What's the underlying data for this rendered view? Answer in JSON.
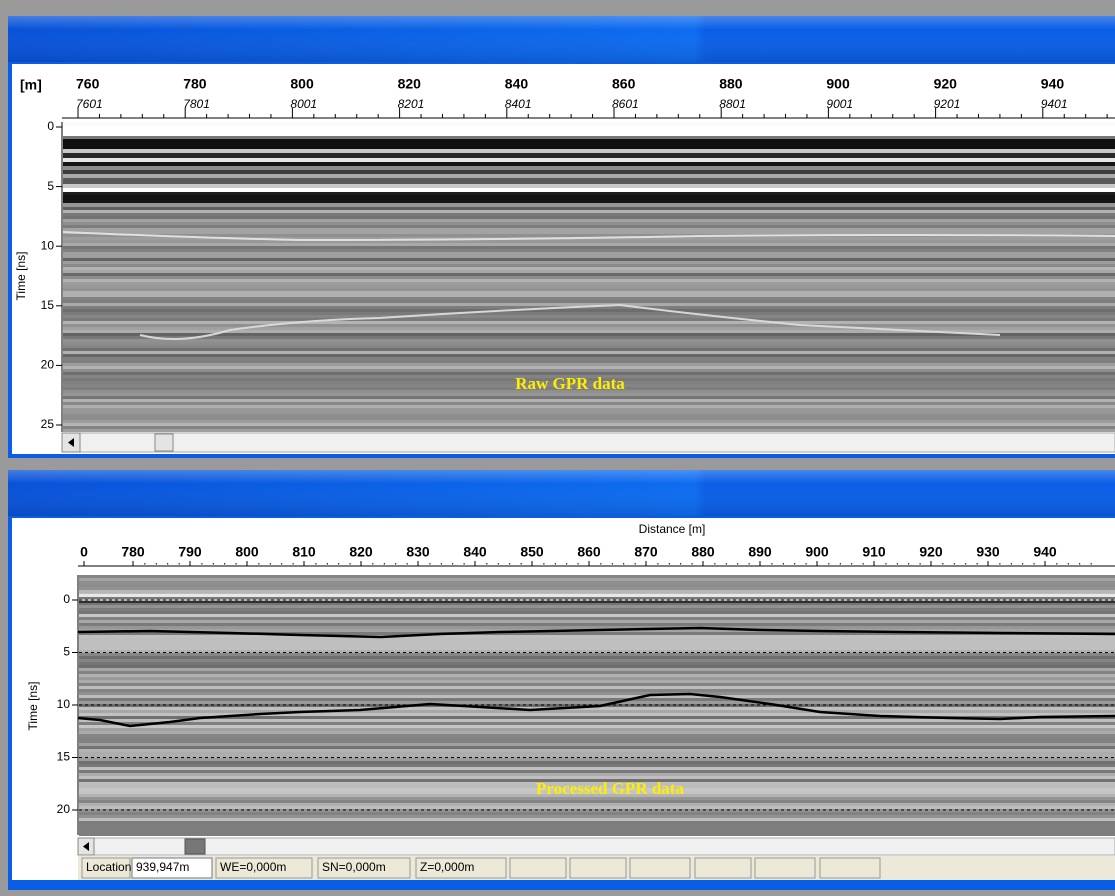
{
  "top_panel": {
    "axis_unit": "[m]",
    "distance_ticks": [
      "760",
      "780",
      "800",
      "820",
      "840",
      "860",
      "880",
      "900",
      "920",
      "940"
    ],
    "trace_ticks": [
      "7601",
      "7801",
      "8001",
      "8201",
      "8401",
      "8601",
      "8801",
      "9001",
      "9201",
      "9401"
    ],
    "time_label": "Time [ns]",
    "time_ticks": [
      "0",
      "5",
      "10",
      "15",
      "20",
      "25"
    ],
    "caption": "Raw  GPR data"
  },
  "bottom_panel": {
    "distance_label": "Distance [m]",
    "distance_ticks": [
      "0",
      "780",
      "790",
      "800",
      "810",
      "820",
      "830",
      "840",
      "850",
      "860",
      "870",
      "880",
      "890",
      "900",
      "910",
      "920",
      "930",
      "940"
    ],
    "time_label": "Time [ns]",
    "time_ticks": [
      "0",
      "5",
      "10",
      "15",
      "20"
    ],
    "caption": "Processed GPR data"
  },
  "status_bar": {
    "location_label": "Location",
    "location_value": "939,947m",
    "we": "WE=0,000m",
    "sn": "SN=0,000m",
    "z": "Z=0,000m"
  }
}
